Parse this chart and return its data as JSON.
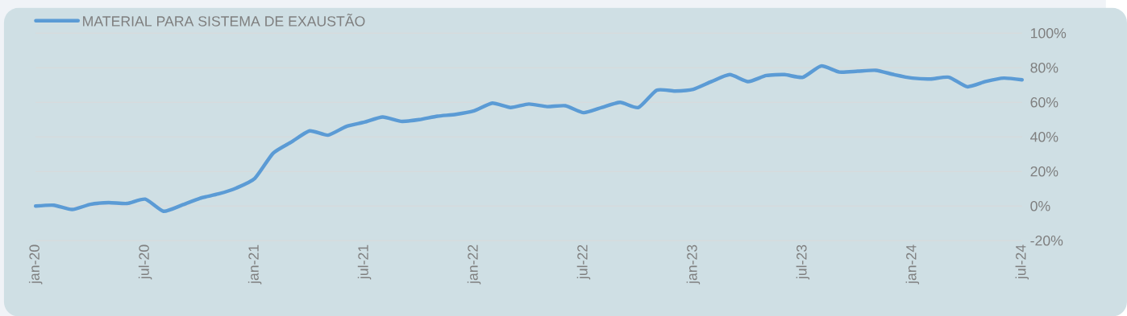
{
  "chart_data": {
    "type": "line",
    "categories": [
      "jan-20",
      null,
      null,
      null,
      null,
      null,
      "jul-20",
      null,
      null,
      null,
      null,
      null,
      "jan-21",
      null,
      null,
      null,
      null,
      null,
      "jul-21",
      null,
      null,
      null,
      null,
      null,
      "jan-22",
      null,
      null,
      null,
      null,
      null,
      "jul-22",
      null,
      null,
      null,
      null,
      null,
      "jan-23",
      null,
      null,
      null,
      null,
      null,
      "jul-23",
      null,
      null,
      null,
      null,
      null,
      "jan-24",
      null,
      null,
      null,
      null,
      null,
      "jul-24"
    ],
    "series": [
      {
        "name": "MATERIAL PARA SISTEMA DE EXAUSTÃO",
        "color": "#5b9bd5",
        "values": [
          0,
          0.5,
          -2,
          1,
          2,
          1.5,
          4,
          -3,
          0.5,
          4.5,
          7,
          10.5,
          16,
          30.5,
          37,
          43.5,
          41,
          46,
          48.5,
          51.5,
          49,
          50,
          52,
          53,
          55,
          59.5,
          57,
          59,
          57.5,
          58,
          54,
          57,
          60,
          57,
          67,
          66.5,
          67.5,
          72,
          76,
          72,
          75.5,
          76,
          74.5,
          81,
          77.5,
          78,
          78.5,
          76,
          74,
          73.5,
          74.5,
          69,
          72,
          74,
          73
        ]
      }
    ],
    "ylim": [
      -20,
      100
    ],
    "yticks": [
      {
        "value": -20,
        "label": "-20%"
      },
      {
        "value": 0,
        "label": "0%"
      },
      {
        "value": 20,
        "label": "20%"
      },
      {
        "value": 40,
        "label": "40%"
      },
      {
        "value": 60,
        "label": "60%"
      },
      {
        "value": 80,
        "label": "80%"
      },
      {
        "value": 100,
        "label": "100%"
      }
    ],
    "grid": "y",
    "legend": "top left"
  }
}
